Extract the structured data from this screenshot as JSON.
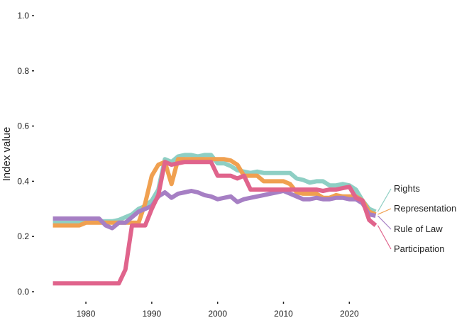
{
  "chart_data": {
    "type": "line",
    "title": "",
    "xlabel": "",
    "ylabel": "Index value",
    "xlim": [
      1974.5,
      2026
    ],
    "ylim": [
      0,
      1.0
    ],
    "x_ticks": [
      1980,
      1990,
      2000,
      2010,
      2020
    ],
    "y_ticks": [
      "0.0",
      "0.2",
      "0.4",
      "0.6",
      "0.8",
      "1.0"
    ],
    "grid": false,
    "legend": "direct labels at right end of lines",
    "x": [
      1975,
      1976,
      1977,
      1978,
      1979,
      1980,
      1981,
      1982,
      1983,
      1984,
      1985,
      1986,
      1987,
      1988,
      1989,
      1990,
      1991,
      1992,
      1993,
      1994,
      1995,
      1996,
      1997,
      1998,
      1999,
      2000,
      2001,
      2002,
      2003,
      2004,
      2005,
      2006,
      2007,
      2008,
      2009,
      2010,
      2011,
      2012,
      2013,
      2014,
      2015,
      2016,
      2017,
      2018,
      2019,
      2020,
      2021,
      2022,
      2023,
      2024
    ],
    "series": [
      {
        "name": "Rights",
        "color": "#8ecfc4",
        "values": [
          0.25,
          0.25,
          0.25,
          0.25,
          0.25,
          0.255,
          0.255,
          0.255,
          0.255,
          0.255,
          0.26,
          0.27,
          0.28,
          0.3,
          0.31,
          0.33,
          0.37,
          0.48,
          0.47,
          0.49,
          0.495,
          0.495,
          0.49,
          0.495,
          0.495,
          0.465,
          0.465,
          0.455,
          0.44,
          0.435,
          0.43,
          0.435,
          0.43,
          0.43,
          0.43,
          0.43,
          0.43,
          0.41,
          0.405,
          0.395,
          0.4,
          0.4,
          0.385,
          0.385,
          0.39,
          0.385,
          0.37,
          0.33,
          0.3,
          0.29
        ]
      },
      {
        "name": "Representation",
        "color": "#f0a050",
        "values": [
          0.24,
          0.24,
          0.24,
          0.24,
          0.24,
          0.25,
          0.25,
          0.25,
          0.25,
          0.25,
          0.25,
          0.25,
          0.25,
          0.25,
          0.32,
          0.42,
          0.46,
          0.47,
          0.39,
          0.48,
          0.48,
          0.48,
          0.48,
          0.48,
          0.48,
          0.48,
          0.48,
          0.475,
          0.46,
          0.42,
          0.42,
          0.42,
          0.4,
          0.4,
          0.4,
          0.4,
          0.39,
          0.36,
          0.355,
          0.355,
          0.355,
          0.34,
          0.34,
          0.35,
          0.345,
          0.345,
          0.345,
          0.33,
          0.29,
          0.28
        ]
      },
      {
        "name": "Rule of Law",
        "color": "#a67fc4",
        "values": [
          0.265,
          0.265,
          0.265,
          0.265,
          0.265,
          0.265,
          0.265,
          0.265,
          0.24,
          0.23,
          0.25,
          0.25,
          0.27,
          0.29,
          0.3,
          0.31,
          0.345,
          0.36,
          0.34,
          0.355,
          0.36,
          0.365,
          0.36,
          0.35,
          0.345,
          0.335,
          0.34,
          0.345,
          0.325,
          0.335,
          0.34,
          0.345,
          0.35,
          0.355,
          0.36,
          0.365,
          0.355,
          0.345,
          0.335,
          0.335,
          0.34,
          0.335,
          0.335,
          0.34,
          0.34,
          0.335,
          0.335,
          0.32,
          0.28,
          0.275
        ]
      },
      {
        "name": "Participation",
        "color": "#e0648c",
        "values": [
          0.03,
          0.03,
          0.03,
          0.03,
          0.03,
          0.03,
          0.03,
          0.03,
          0.03,
          0.03,
          0.03,
          0.08,
          0.24,
          0.24,
          0.24,
          0.3,
          0.35,
          0.47,
          0.46,
          0.465,
          0.47,
          0.47,
          0.47,
          0.47,
          0.47,
          0.42,
          0.42,
          0.42,
          0.41,
          0.42,
          0.37,
          0.37,
          0.37,
          0.37,
          0.37,
          0.37,
          0.37,
          0.37,
          0.37,
          0.37,
          0.37,
          0.365,
          0.37,
          0.37,
          0.375,
          0.38,
          0.34,
          0.33,
          0.26,
          0.24
        ]
      }
    ]
  }
}
